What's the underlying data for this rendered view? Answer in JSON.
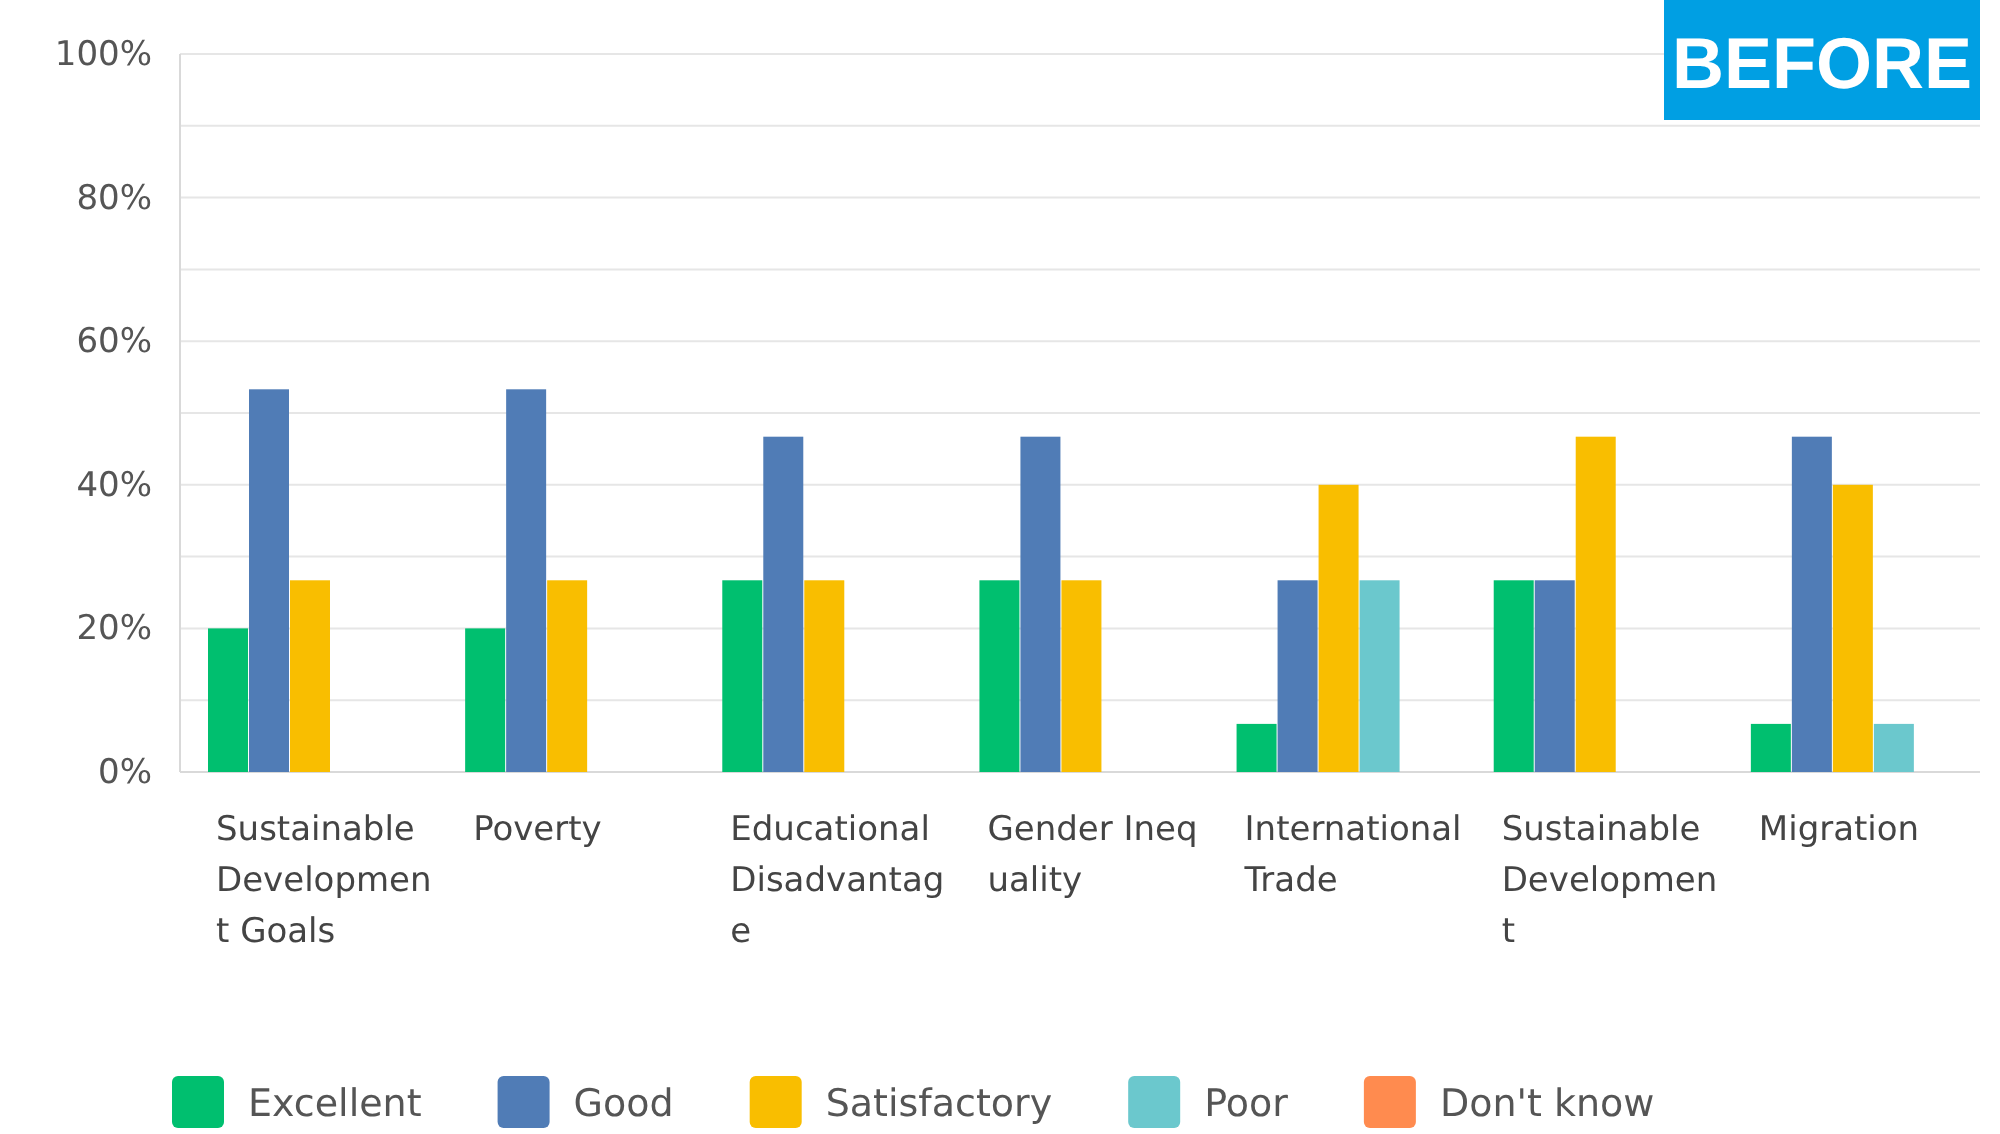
{
  "chart_data": {
    "type": "bar",
    "categories": [
      "Sustainable Development Goals",
      "Poverty",
      "Educational Disadvantage",
      "Gender Inequality",
      "International Trade",
      "Sustainable Development",
      "Migration"
    ],
    "series": [
      {
        "name": "Excellent",
        "color": "#00bf6f",
        "values": [
          20,
          20,
          26.7,
          26.7,
          6.7,
          26.7,
          6.7
        ]
      },
      {
        "name": "Good",
        "color": "#507cb6",
        "values": [
          53.3,
          53.3,
          46.7,
          46.7,
          26.7,
          26.7,
          46.7
        ]
      },
      {
        "name": "Satisfactory",
        "color": "#f9be00",
        "values": [
          26.7,
          26.7,
          26.7,
          26.7,
          40,
          46.7,
          40
        ]
      },
      {
        "name": "Poor",
        "color": "#6bc8cd",
        "values": [
          0,
          0,
          0,
          0,
          26.7,
          0,
          6.7
        ]
      },
      {
        "name": "Don't know",
        "color": "#ff8b4f",
        "values": [
          0,
          0,
          0,
          0,
          0,
          0,
          0
        ]
      }
    ],
    "ylim": [
      0,
      100
    ],
    "yticks": [
      {
        "value": 0,
        "label": "0%"
      },
      {
        "value": 10,
        "label": null
      },
      {
        "value": 20,
        "label": "20%"
      },
      {
        "value": 30,
        "label": null
      },
      {
        "value": 40,
        "label": "40%"
      },
      {
        "value": 50,
        "label": null
      },
      {
        "value": 60,
        "label": "60%"
      },
      {
        "value": 70,
        "label": null
      },
      {
        "value": 80,
        "label": "80%"
      },
      {
        "value": 90,
        "label": null
      },
      {
        "value": 100,
        "label": "100%"
      }
    ],
    "grid": true,
    "legend": "bottom",
    "annotations": [
      "BEFORE"
    ]
  }
}
